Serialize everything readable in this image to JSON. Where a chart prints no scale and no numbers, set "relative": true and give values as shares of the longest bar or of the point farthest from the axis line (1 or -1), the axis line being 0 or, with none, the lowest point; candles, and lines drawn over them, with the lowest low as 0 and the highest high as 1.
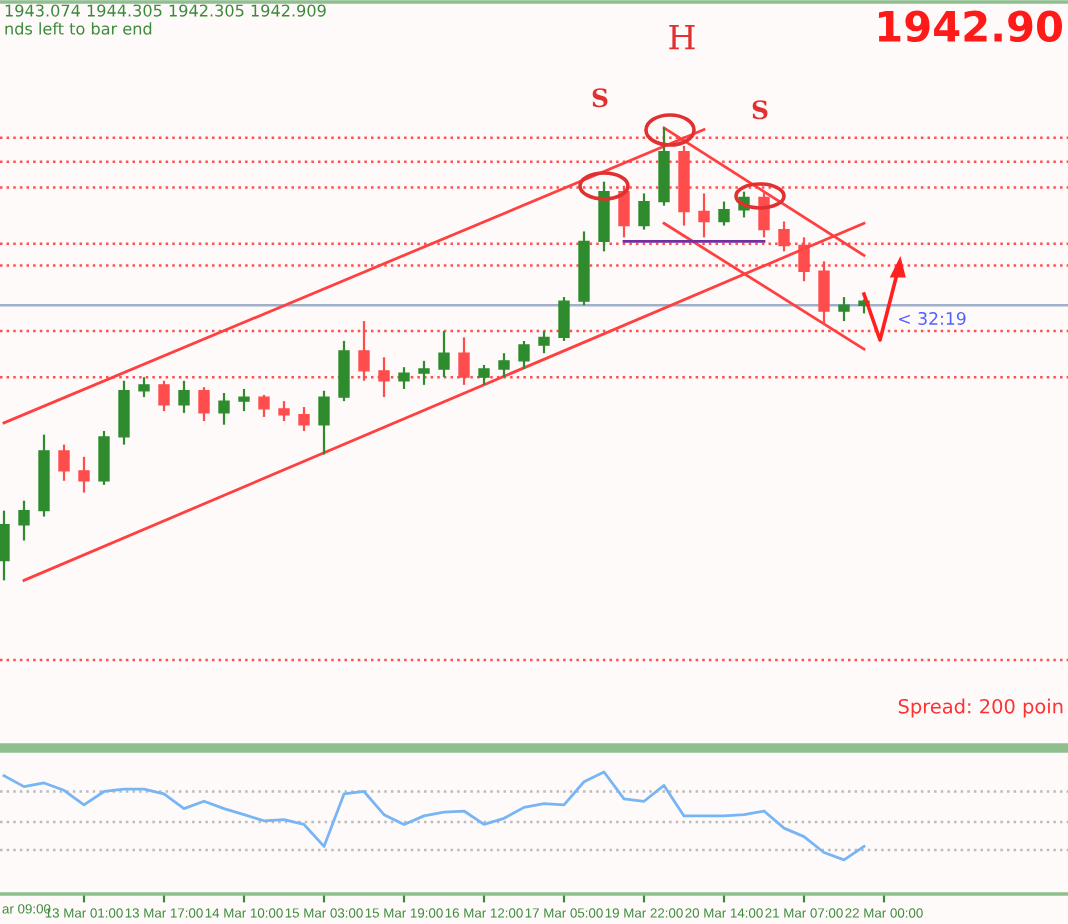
{
  "chart_data": [
    {
      "type": "candlestick",
      "relative": true,
      "categories": [
        null,
        null,
        null,
        null,
        null,
        null,
        null,
        null,
        null,
        null,
        null,
        null,
        null,
        null,
        null,
        null,
        null,
        null,
        null,
        null,
        null,
        null,
        null,
        null,
        null,
        null,
        null,
        null,
        null,
        null,
        null,
        null,
        null,
        null,
        null,
        null,
        null,
        null,
        null,
        null,
        null,
        null,
        null,
        null
      ],
      "ohlc": [
        [
          0.044,
          0.154,
          0,
          0.123
        ],
        [
          0.123,
          0.176,
          0.088,
          0.154
        ],
        [
          0.154,
          0.322,
          0.141,
          0.286
        ],
        [
          0.286,
          0.3,
          0.22,
          0.242
        ],
        [
          0.242,
          0.273,
          0.194,
          0.22
        ],
        [
          0.22,
          0.33,
          0.211,
          0.317
        ],
        [
          0.317,
          0.441,
          0.3,
          0.419
        ],
        [
          0.419,
          0.449,
          0.405,
          0.432
        ],
        [
          0.432,
          0.441,
          0.374,
          0.388
        ],
        [
          0.388,
          0.441,
          0.37,
          0.419
        ],
        [
          0.419,
          0.427,
          0.352,
          0.37
        ],
        [
          0.37,
          0.414,
          0.344,
          0.396
        ],
        [
          0.396,
          0.423,
          0.374,
          0.405
        ],
        [
          0.405,
          0.41,
          0.361,
          0.379
        ],
        [
          0.379,
          0.396,
          0.352,
          0.366
        ],
        [
          0.366,
          0.383,
          0.33,
          0.344
        ],
        [
          0.344,
          0.419,
          0.278,
          0.405
        ],
        [
          0.405,
          0.529,
          0.396,
          0.507
        ],
        [
          0.507,
          0.573,
          0.441,
          0.463
        ],
        [
          0.463,
          0.493,
          0.405,
          0.441
        ],
        [
          0.441,
          0.471,
          0.423,
          0.458
        ],
        [
          0.458,
          0.485,
          0.432,
          0.467
        ],
        [
          0.467,
          0.551,
          0.449,
          0.502
        ],
        [
          0.502,
          0.537,
          0.432,
          0.449
        ],
        [
          0.449,
          0.476,
          0.432,
          0.467
        ],
        [
          0.467,
          0.502,
          0.449,
          0.485
        ],
        [
          0.485,
          0.529,
          0.467,
          0.52
        ],
        [
          0.52,
          0.551,
          0.502,
          0.537
        ],
        [
          0.537,
          0.626,
          0.529,
          0.617
        ],
        [
          0.617,
          0.771,
          0.608,
          0.749
        ],
        [
          0.749,
          0.881,
          0.727,
          0.859
        ],
        [
          0.859,
          0.872,
          0.758,
          0.784
        ],
        [
          0.784,
          0.855,
          0.775,
          0.837
        ],
        [
          0.837,
          1.0,
          0.828,
          0.947
        ],
        [
          0.947,
          0.96,
          0.784,
          0.815
        ],
        [
          0.815,
          0.855,
          0.758,
          0.793
        ],
        [
          0.793,
          0.837,
          0.784,
          0.819
        ],
        [
          0.819,
          0.859,
          0.802,
          0.846
        ],
        [
          0.846,
          0.859,
          0.758,
          0.775
        ],
        [
          0.775,
          0.793,
          0.727,
          0.74
        ],
        [
          0.74,
          0.758,
          0.661,
          0.683
        ],
        [
          0.683,
          0.705,
          0.564,
          0.595
        ],
        [
          0.595,
          0.626,
          0.573,
          0.608
        ],
        [
          0.608,
          0.621,
          0.59,
          0.617
        ]
      ],
      "colors": [
        "#2e8b2e",
        "#2e8b2e",
        "#2e8b2e",
        "#ff4d4d",
        "#ff4d4d",
        "#2e8b2e",
        "#2e8b2e",
        "#2e8b2e",
        "#ff4d4d",
        "#2e8b2e",
        "#ff4d4d",
        "#2e8b2e",
        "#2e8b2e",
        "#ff4d4d",
        "#ff4d4d",
        "#ff4d4d",
        "#2e8b2e",
        "#2e8b2e",
        "#ff4d4d",
        "#ff4d4d",
        "#2e8b2e",
        "#2e8b2e",
        "#2e8b2e",
        "#ff4d4d",
        "#2e8b2e",
        "#2e8b2e",
        "#2e8b2e",
        "#2e8b2e",
        "#2e8b2e",
        "#2e8b2e",
        "#2e8b2e",
        "#ff4d4d",
        "#2e8b2e",
        "#2e8b2e",
        "#ff4d4d",
        "#ff4d4d",
        "#2e8b2e",
        "#2e8b2e",
        "#ff4d4d",
        "#ff4d4d",
        "#ff4d4d",
        "#ff4d4d",
        "#2e8b2e",
        "#2e8b2e"
      ],
      "series": [
        {
          "type": "line",
          "color": "#ff4040",
          "values": [
            0.348,
            null,
            null,
            null,
            null,
            null,
            null,
            null,
            null,
            null,
            null,
            null,
            null,
            null,
            null,
            null,
            null,
            null,
            null,
            null,
            null,
            null,
            null,
            null,
            null,
            null,
            null,
            null,
            null,
            null,
            null,
            null,
            null,
            null,
            null,
            0.996,
            null,
            null,
            null,
            null,
            null,
            null,
            null,
            null
          ]
        },
        {
          "type": "line",
          "color": "#ff4040",
          "values": [
            null,
            0.0,
            null,
            null,
            null,
            null,
            null,
            null,
            null,
            null,
            null,
            null,
            null,
            null,
            null,
            null,
            null,
            null,
            null,
            null,
            null,
            null,
            null,
            null,
            null,
            null,
            null,
            null,
            null,
            null,
            null,
            null,
            null,
            null,
            null,
            null,
            null,
            null,
            null,
            null,
            null,
            null,
            null,
            0.789
          ]
        },
        {
          "type": "line",
          "color": "#ff4040",
          "values": [
            null,
            null,
            null,
            null,
            null,
            null,
            null,
            null,
            null,
            null,
            null,
            null,
            null,
            null,
            null,
            null,
            null,
            null,
            null,
            null,
            null,
            null,
            null,
            null,
            null,
            null,
            null,
            null,
            null,
            null,
            null,
            null,
            null,
            1.0,
            null,
            null,
            null,
            null,
            null,
            null,
            null,
            null,
            null,
            0.718
          ]
        },
        {
          "type": "line",
          "color": "#ff4040",
          "values": [
            null,
            null,
            null,
            null,
            null,
            null,
            null,
            null,
            null,
            null,
            null,
            null,
            null,
            null,
            null,
            null,
            null,
            null,
            null,
            null,
            null,
            null,
            null,
            null,
            null,
            null,
            null,
            null,
            null,
            null,
            null,
            null,
            null,
            0.789,
            null,
            null,
            null,
            null,
            null,
            null,
            null,
            null,
            null,
            0.511
          ]
        },
        {
          "type": "line",
          "color": "#7030a0",
          "values": [
            null,
            null,
            null,
            null,
            null,
            null,
            null,
            null,
            null,
            null,
            null,
            null,
            null,
            null,
            null,
            null,
            null,
            null,
            null,
            null,
            null,
            null,
            null,
            null,
            null,
            null,
            null,
            null,
            null,
            null,
            null,
            0.749,
            null,
            null,
            null,
            null,
            null,
            null,
            0.749,
            null,
            null,
            null,
            null,
            null
          ]
        }
      ],
      "ref_lines": [
        {
          "axis": "y",
          "value": 0.978,
          "color": "#ff5050",
          "line_style": "dotted"
        },
        {
          "axis": "y",
          "value": 0.925,
          "color": "#ff5050",
          "line_style": "dotted"
        },
        {
          "axis": "y",
          "value": 0.868,
          "color": "#ff5050",
          "line_style": "dotted"
        },
        {
          "axis": "y",
          "value": 0.744,
          "color": "#ff5050",
          "line_style": "dotted"
        },
        {
          "axis": "y",
          "value": 0.696,
          "color": "#ff5050",
          "line_style": "dotted"
        },
        {
          "axis": "y",
          "value": 0.608,
          "color": "#9fb0c8",
          "line_style": "solid"
        },
        {
          "axis": "y",
          "value": 0.551,
          "color": "#ff5050",
          "line_style": "dotted"
        },
        {
          "axis": "y",
          "value": 0.449,
          "color": "#ff5050",
          "line_style": "dotted"
        },
        {
          "axis": "y",
          "value": -0.176,
          "color": "#ff5050",
          "line_style": "dotted"
        }
      ],
      "annotations": [
        "1943.074 1944.305 1942.305 1942.909",
        "nds left to bar end",
        "1942.90",
        "S",
        "H",
        "S",
        "< 32:19",
        "Spread: 200 poin"
      ]
    },
    {
      "type": "line",
      "relative": true,
      "annotations": [
        "ar 09:00"
      ],
      "categories": [
        null,
        null,
        null,
        null,
        "13 Mar 01:00",
        null,
        null,
        null,
        "13 Mar 17:00",
        null,
        null,
        null,
        "14 Mar 10:00",
        null,
        null,
        null,
        "15 Mar 03:00",
        null,
        null,
        null,
        "15 Mar 19:00",
        null,
        null,
        null,
        "16 Mar 12:00",
        null,
        null,
        null,
        "17 Mar 05:00",
        null,
        null,
        null,
        "19 Mar 22:00",
        null,
        null,
        null,
        "20 Mar 14:00",
        null,
        null,
        null,
        "21 Mar 07:00",
        null,
        null,
        null,
        "22 Mar 00:00"
      ],
      "series": [
        {
          "color": "#77b5f5",
          "values": [
            0.97,
            0.88,
            0.91,
            0.85,
            0.73,
            0.84,
            0.86,
            0.86,
            0.82,
            0.7,
            0.76,
            0.7,
            0.65,
            0.6,
            0.61,
            0.57,
            0.39,
            0.82,
            0.84,
            0.65,
            0.57,
            0.64,
            0.67,
            0.68,
            0.57,
            0.62,
            0.71,
            0.74,
            0.73,
            0.92,
            1.0,
            0.78,
            0.76,
            0.89,
            0.64,
            0.64,
            0.64,
            0.65,
            0.68,
            0.54,
            0.47,
            0.34,
            0.28,
            0.39,
            null
          ]
        }
      ],
      "ref_lines": [
        {
          "axis": "y",
          "value": 0.84,
          "color": "#bbbbbb",
          "line_style": "dotted"
        },
        {
          "axis": "y",
          "value": 0.59,
          "color": "#bbbbbb",
          "line_style": "dotted"
        },
        {
          "axis": "y",
          "value": 0.36,
          "color": "#bbbbbb",
          "line_style": "dotted"
        }
      ]
    }
  ]
}
